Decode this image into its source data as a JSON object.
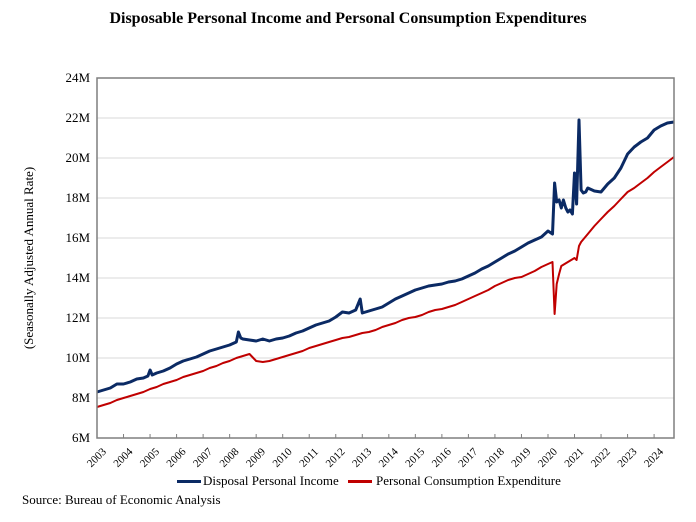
{
  "chart_data": {
    "type": "line",
    "title": "Disposable Personal Income and Personal Consumption Expenditures",
    "xlabel": "",
    "ylabel": "(Seasonally Adjusted Annual Rate)",
    "ylim": [
      6,
      24
    ],
    "yticks": [
      6,
      8,
      10,
      12,
      14,
      16,
      18,
      20,
      22,
      24
    ],
    "ytick_labels": [
      "6M",
      "8M",
      "10M",
      "12M",
      "14M",
      "16M",
      "18M",
      "20M",
      "22M",
      "24M"
    ],
    "xlim": [
      2003.0,
      2024.75
    ],
    "xticks": [
      2003,
      2004,
      2005,
      2006,
      2007,
      2008,
      2009,
      2010,
      2011,
      2012,
      2013,
      2014,
      2015,
      2016,
      2017,
      2018,
      2019,
      2020,
      2021,
      2022,
      2023,
      2024
    ],
    "xtick_labels": [
      "2003",
      "2004",
      "2005",
      "2006",
      "2007",
      "2008",
      "2009",
      "2010",
      "2011",
      "2012",
      "2013",
      "2014",
      "2015",
      "2016",
      "2017",
      "2018",
      "2019",
      "2020",
      "2021",
      "2022",
      "2023",
      "2024"
    ],
    "grid": true,
    "legend_position": "bottom",
    "series": [
      {
        "name": "Disposal Personal Income",
        "color": "#0b2a64",
        "x": [
          2003.0,
          2003.25,
          2003.5,
          2003.75,
          2004.0,
          2004.25,
          2004.5,
          2004.75,
          2004.92,
          2005.0,
          2005.08,
          2005.25,
          2005.5,
          2005.75,
          2006.0,
          2006.25,
          2006.5,
          2006.75,
          2007.0,
          2007.25,
          2007.5,
          2007.75,
          2008.0,
          2008.25,
          2008.33,
          2008.42,
          2008.5,
          2008.75,
          2009.0,
          2009.25,
          2009.5,
          2009.75,
          2010.0,
          2010.25,
          2010.5,
          2010.75,
          2011.0,
          2011.25,
          2011.5,
          2011.75,
          2012.0,
          2012.25,
          2012.5,
          2012.75,
          2012.92,
          2013.0,
          2013.25,
          2013.5,
          2013.75,
          2014.0,
          2014.25,
          2014.5,
          2014.75,
          2015.0,
          2015.25,
          2015.5,
          2015.75,
          2016.0,
          2016.25,
          2016.5,
          2016.75,
          2017.0,
          2017.25,
          2017.5,
          2017.75,
          2018.0,
          2018.25,
          2018.5,
          2018.75,
          2019.0,
          2019.25,
          2019.5,
          2019.75,
          2020.0,
          2020.17,
          2020.25,
          2020.33,
          2020.42,
          2020.5,
          2020.58,
          2020.67,
          2020.75,
          2020.83,
          2020.92,
          2021.0,
          2021.08,
          2021.17,
          2021.25,
          2021.33,
          2021.42,
          2021.5,
          2021.75,
          2022.0,
          2022.25,
          2022.5,
          2022.75,
          2023.0,
          2023.25,
          2023.5,
          2023.75,
          2024.0,
          2024.25,
          2024.5,
          2024.75
        ],
        "values": [
          8.3,
          8.4,
          8.5,
          8.7,
          8.7,
          8.8,
          8.95,
          9.0,
          9.1,
          9.4,
          9.15,
          9.25,
          9.35,
          9.5,
          9.7,
          9.85,
          9.95,
          10.05,
          10.2,
          10.35,
          10.45,
          10.55,
          10.65,
          10.8,
          11.3,
          11.0,
          10.95,
          10.9,
          10.85,
          10.95,
          10.85,
          10.95,
          11.0,
          11.1,
          11.25,
          11.35,
          11.5,
          11.65,
          11.75,
          11.85,
          12.05,
          12.3,
          12.25,
          12.4,
          12.95,
          12.25,
          12.35,
          12.45,
          12.55,
          12.75,
          12.95,
          13.1,
          13.25,
          13.4,
          13.5,
          13.6,
          13.65,
          13.7,
          13.8,
          13.85,
          13.95,
          14.1,
          14.25,
          14.45,
          14.6,
          14.8,
          15.0,
          15.2,
          15.35,
          15.55,
          15.75,
          15.9,
          16.05,
          16.35,
          16.2,
          18.75,
          17.8,
          17.9,
          17.5,
          17.9,
          17.5,
          17.3,
          17.4,
          17.2,
          19.25,
          17.7,
          21.9,
          18.4,
          18.25,
          18.3,
          18.5,
          18.35,
          18.3,
          18.7,
          19.0,
          19.5,
          20.2,
          20.55,
          20.8,
          21.0,
          21.4,
          21.6,
          21.75,
          21.8
        ]
      },
      {
        "name": "Personal Consumption Expenditure",
        "color": "#c00000",
        "x": [
          2003.0,
          2003.25,
          2003.5,
          2003.75,
          2004.0,
          2004.25,
          2004.5,
          2004.75,
          2005.0,
          2005.25,
          2005.5,
          2005.75,
          2006.0,
          2006.25,
          2006.5,
          2006.75,
          2007.0,
          2007.25,
          2007.5,
          2007.75,
          2008.0,
          2008.25,
          2008.5,
          2008.75,
          2009.0,
          2009.25,
          2009.5,
          2009.75,
          2010.0,
          2010.25,
          2010.5,
          2010.75,
          2011.0,
          2011.25,
          2011.5,
          2011.75,
          2012.0,
          2012.25,
          2012.5,
          2012.75,
          2013.0,
          2013.25,
          2013.5,
          2013.75,
          2014.0,
          2014.25,
          2014.5,
          2014.75,
          2015.0,
          2015.25,
          2015.5,
          2015.75,
          2016.0,
          2016.25,
          2016.5,
          2016.75,
          2017.0,
          2017.25,
          2017.5,
          2017.75,
          2018.0,
          2018.25,
          2018.5,
          2018.75,
          2019.0,
          2019.25,
          2019.5,
          2019.75,
          2020.0,
          2020.17,
          2020.25,
          2020.33,
          2020.42,
          2020.5,
          2020.75,
          2021.0,
          2021.08,
          2021.17,
          2021.25,
          2021.5,
          2021.75,
          2022.0,
          2022.25,
          2022.5,
          2022.75,
          2023.0,
          2023.25,
          2023.5,
          2023.75,
          2024.0,
          2024.25,
          2024.5,
          2024.75
        ],
        "values": [
          7.55,
          7.65,
          7.75,
          7.9,
          8.0,
          8.1,
          8.2,
          8.3,
          8.45,
          8.55,
          8.7,
          8.8,
          8.9,
          9.05,
          9.15,
          9.25,
          9.35,
          9.5,
          9.6,
          9.75,
          9.85,
          10.0,
          10.1,
          10.2,
          9.85,
          9.8,
          9.85,
          9.95,
          10.05,
          10.15,
          10.25,
          10.35,
          10.5,
          10.6,
          10.7,
          10.8,
          10.9,
          11.0,
          11.05,
          11.15,
          11.25,
          11.3,
          11.4,
          11.55,
          11.65,
          11.75,
          11.9,
          12.0,
          12.05,
          12.15,
          12.3,
          12.4,
          12.45,
          12.55,
          12.65,
          12.8,
          12.95,
          13.1,
          13.25,
          13.4,
          13.6,
          13.75,
          13.9,
          14.0,
          14.05,
          14.2,
          14.35,
          14.55,
          14.7,
          14.8,
          12.2,
          13.7,
          14.2,
          14.6,
          14.8,
          15.0,
          14.9,
          15.6,
          15.8,
          16.2,
          16.6,
          16.95,
          17.3,
          17.6,
          17.95,
          18.3,
          18.5,
          18.75,
          19.0,
          19.3,
          19.55,
          19.8,
          20.05
        ]
      }
    ]
  },
  "source": "Source: Bureau of Economic Analysis"
}
